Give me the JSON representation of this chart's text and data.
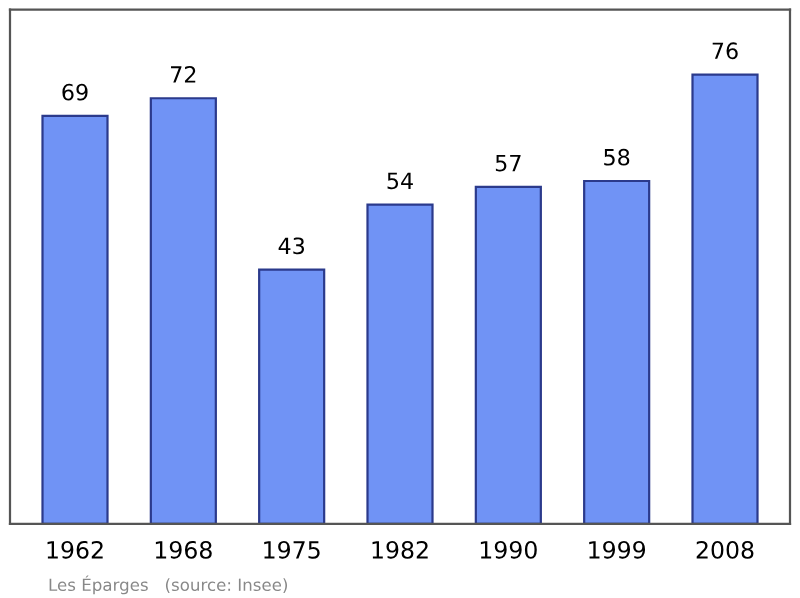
{
  "chart_data": {
    "type": "bar",
    "categories": [
      "1962",
      "1968",
      "1975",
      "1982",
      "1990",
      "1999",
      "2008"
    ],
    "values": [
      69,
      72,
      43,
      54,
      57,
      58,
      76
    ],
    "color": "#7093f5",
    "ylim": [
      0,
      87
    ],
    "data_labels": true,
    "grid": false,
    "annotations": [
      "Les Éparges   (source: Insee)"
    ]
  }
}
